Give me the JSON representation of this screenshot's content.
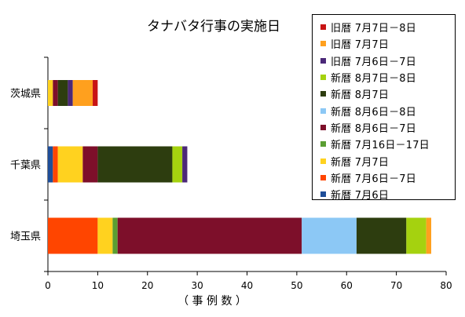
{
  "chart_data": {
    "type": "bar",
    "orientation": "horizontal",
    "stacked": true,
    "title": "タナバタ行事の実施日",
    "xlabel": "（ 事 例 数 ）",
    "ylabel": "",
    "xlim": [
      0,
      80
    ],
    "xticks": [
      0,
      10,
      20,
      30,
      40,
      50,
      60,
      70,
      80
    ],
    "categories": [
      "茨城県",
      "千葉県",
      "埼玉県"
    ],
    "legend_position": "top-right",
    "grid": false,
    "series": [
      {
        "name": "新暦 7月6日",
        "color": "#1F4E99",
        "values": [
          0,
          1,
          0
        ]
      },
      {
        "name": "新暦 7月6日－7日",
        "color": "#FF4500",
        "values": [
          0,
          1,
          10
        ]
      },
      {
        "name": "新暦 7月7日",
        "color": "#FFD21F",
        "values": [
          1,
          5,
          3
        ]
      },
      {
        "name": "新暦 7月16日－17日",
        "color": "#5A9E32",
        "values": [
          0,
          0,
          1
        ]
      },
      {
        "name": "新暦 8月6日－7日",
        "color": "#7D0F2A",
        "values": [
          1,
          3,
          37
        ]
      },
      {
        "name": "新暦 8月6日－8日",
        "color": "#8CC8F5",
        "values": [
          0,
          0,
          11
        ]
      },
      {
        "name": "新暦 8月7日",
        "color": "#2D3D0F",
        "values": [
          2,
          15,
          10
        ]
      },
      {
        "name": "新暦 8月7日－8日",
        "color": "#A5D20F",
        "values": [
          0,
          2,
          4
        ]
      },
      {
        "name": "旧暦 7月6日－7日",
        "color": "#4B2878",
        "values": [
          1,
          1,
          0
        ]
      },
      {
        "name": "旧暦 7月7日",
        "color": "#FFA01E",
        "values": [
          4,
          0,
          1
        ]
      },
      {
        "name": "旧暦 7月7日－8日",
        "color": "#C81414",
        "values": [
          1,
          0,
          0
        ]
      }
    ]
  }
}
